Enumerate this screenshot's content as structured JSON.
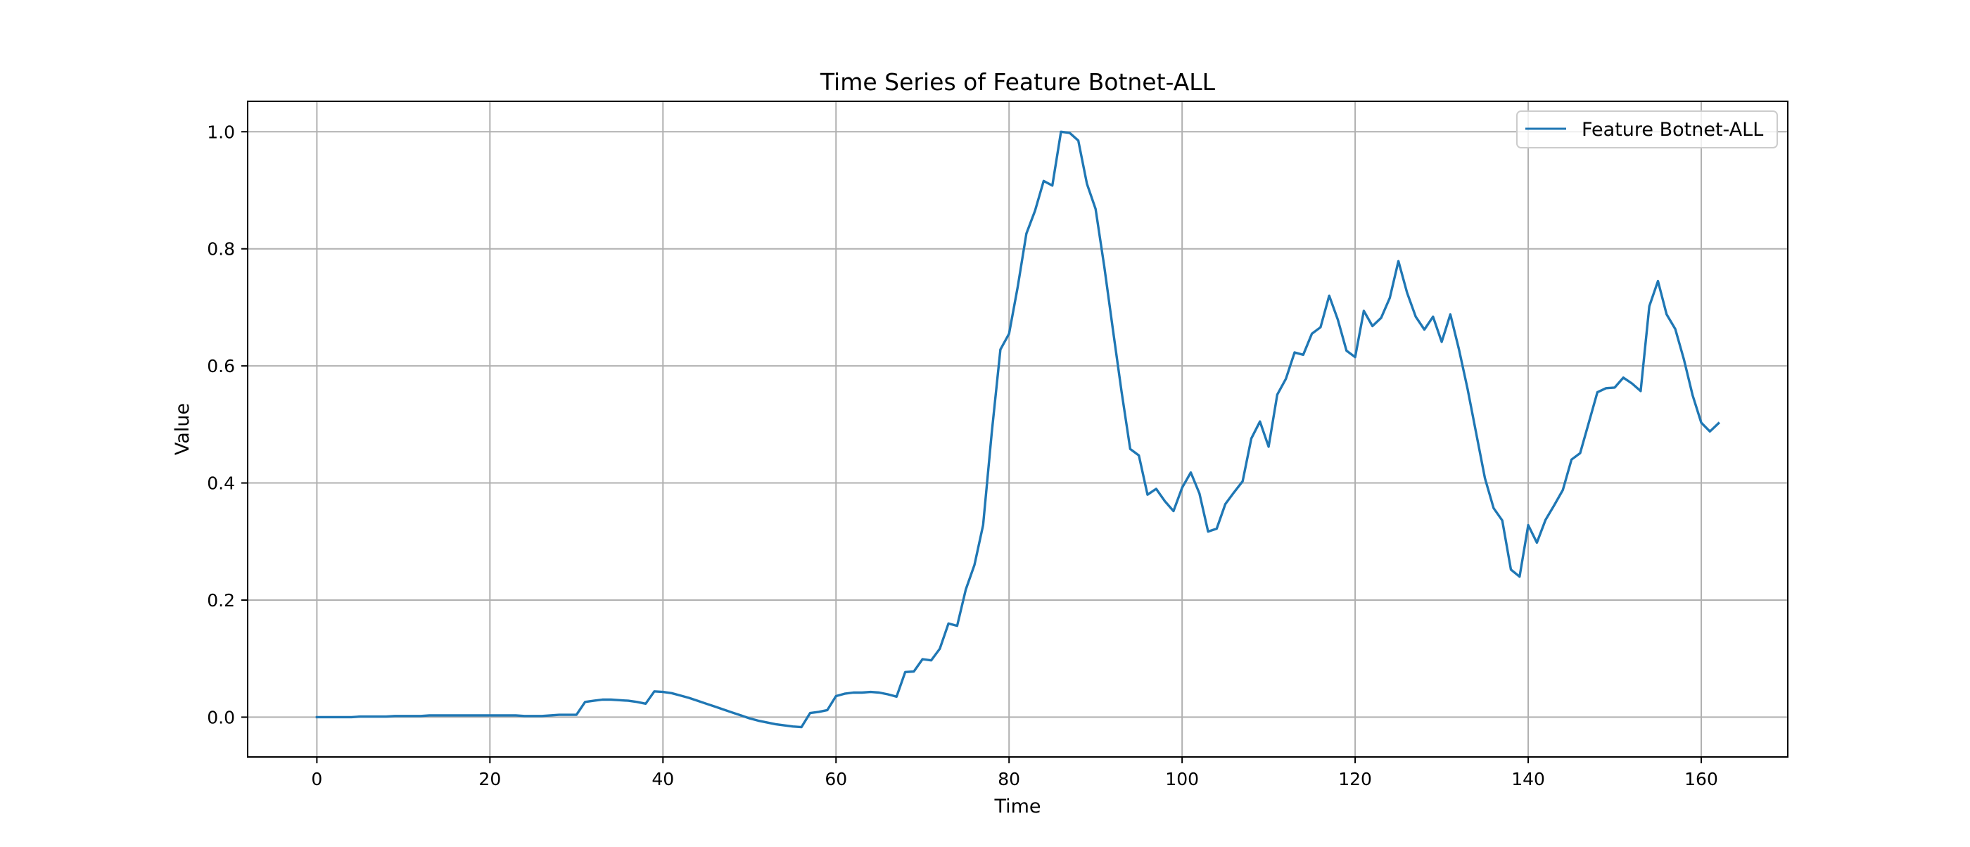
{
  "chart_data": {
    "type": "line",
    "title": "Time Series of Feature Botnet-ALL",
    "xlabel": "Time",
    "ylabel": "Value",
    "xlim": [
      -8,
      170
    ],
    "ylim": [
      -0.068,
      1.052
    ],
    "xticks": [
      0,
      20,
      40,
      60,
      80,
      100,
      120,
      140,
      160
    ],
    "yticks": [
      0.0,
      0.2,
      0.4,
      0.6,
      0.8,
      1.0
    ],
    "xtick_labels": [
      "0",
      "20",
      "40",
      "60",
      "80",
      "100",
      "120",
      "140",
      "160"
    ],
    "ytick_labels": [
      "0.0",
      "0.2",
      "0.4",
      "0.6",
      "0.8",
      "1.0"
    ],
    "grid": true,
    "legend": {
      "position": "upper-right",
      "entries": [
        "Feature Botnet-ALL"
      ]
    },
    "series": [
      {
        "name": "Feature Botnet-ALL",
        "color": "#1f77b4",
        "x": [
          0,
          1,
          2,
          3,
          4,
          5,
          6,
          7,
          8,
          9,
          10,
          11,
          12,
          13,
          14,
          15,
          16,
          17,
          18,
          19,
          20,
          21,
          22,
          23,
          24,
          25,
          26,
          27,
          28,
          29,
          30,
          31,
          32,
          33,
          34,
          35,
          36,
          37,
          38,
          39,
          40,
          41,
          42,
          43,
          44,
          45,
          46,
          47,
          48,
          49,
          50,
          51,
          52,
          53,
          54,
          55,
          56,
          57,
          58,
          59,
          60,
          61,
          62,
          63,
          64,
          65,
          66,
          67,
          68,
          69,
          70,
          71,
          72,
          73,
          74,
          75,
          76,
          77,
          78,
          79,
          80,
          81,
          82,
          83,
          84,
          85,
          86,
          87,
          88,
          89,
          90,
          91,
          92,
          93,
          94,
          95,
          96,
          97,
          98,
          99,
          100,
          101,
          102,
          103,
          104,
          105,
          106,
          107,
          108,
          109,
          110,
          111,
          112,
          113,
          114,
          115,
          116,
          117,
          118,
          119,
          120,
          121,
          122,
          123,
          124,
          125,
          126,
          127,
          128,
          129,
          130,
          131,
          132,
          133,
          134,
          135,
          136,
          137,
          138,
          139,
          140,
          141,
          142,
          143,
          144,
          145,
          146,
          147,
          148,
          149,
          150,
          151,
          152,
          153,
          154,
          155,
          156,
          157,
          158,
          159,
          160,
          161,
          162
        ],
        "values": [
          0.0,
          0.0,
          0.0,
          0.0,
          0.0,
          0.001,
          0.001,
          0.001,
          0.001,
          0.002,
          0.002,
          0.002,
          0.002,
          0.003,
          0.003,
          0.003,
          0.003,
          0.003,
          0.003,
          0.003,
          0.003,
          0.003,
          0.003,
          0.003,
          0.002,
          0.002,
          0.002,
          0.003,
          0.004,
          0.004,
          0.004,
          0.026,
          0.028,
          0.03,
          0.03,
          0.029,
          0.028,
          0.026,
          0.023,
          0.044,
          0.043,
          0.041,
          0.037,
          0.033,
          0.028,
          0.023,
          0.018,
          0.013,
          0.008,
          0.003,
          -0.002,
          -0.006,
          -0.009,
          -0.012,
          -0.014,
          -0.016,
          -0.017,
          0.007,
          0.009,
          0.012,
          0.036,
          0.04,
          0.042,
          0.042,
          0.043,
          0.042,
          0.039,
          0.035,
          0.077,
          0.078,
          0.099,
          0.097,
          0.117,
          0.16,
          0.156,
          0.218,
          0.26,
          0.328,
          0.486,
          0.628,
          0.655,
          0.735,
          0.826,
          0.865,
          0.916,
          0.908,
          1.0,
          0.998,
          0.985,
          0.911,
          0.868,
          0.77,
          0.662,
          0.556,
          0.458,
          0.447,
          0.38,
          0.39,
          0.369,
          0.352,
          0.392,
          0.418,
          0.382,
          0.317,
          0.322,
          0.364,
          0.384,
          0.403,
          0.476,
          0.505,
          0.462,
          0.551,
          0.578,
          0.623,
          0.619,
          0.655,
          0.666,
          0.72,
          0.679,
          0.626,
          0.615,
          0.694,
          0.668,
          0.682,
          0.716,
          0.779,
          0.725,
          0.684,
          0.662,
          0.684,
          0.641,
          0.688,
          0.628,
          0.56,
          0.484,
          0.408,
          0.357,
          0.336,
          0.252,
          0.24,
          0.328,
          0.298,
          0.337,
          0.362,
          0.388,
          0.44,
          0.451,
          0.503,
          0.555,
          0.562,
          0.563,
          0.58,
          0.57,
          0.557,
          0.702,
          0.745,
          0.688,
          0.663,
          0.611,
          0.55,
          0.503,
          0.488,
          0.502
        ]
      }
    ]
  }
}
